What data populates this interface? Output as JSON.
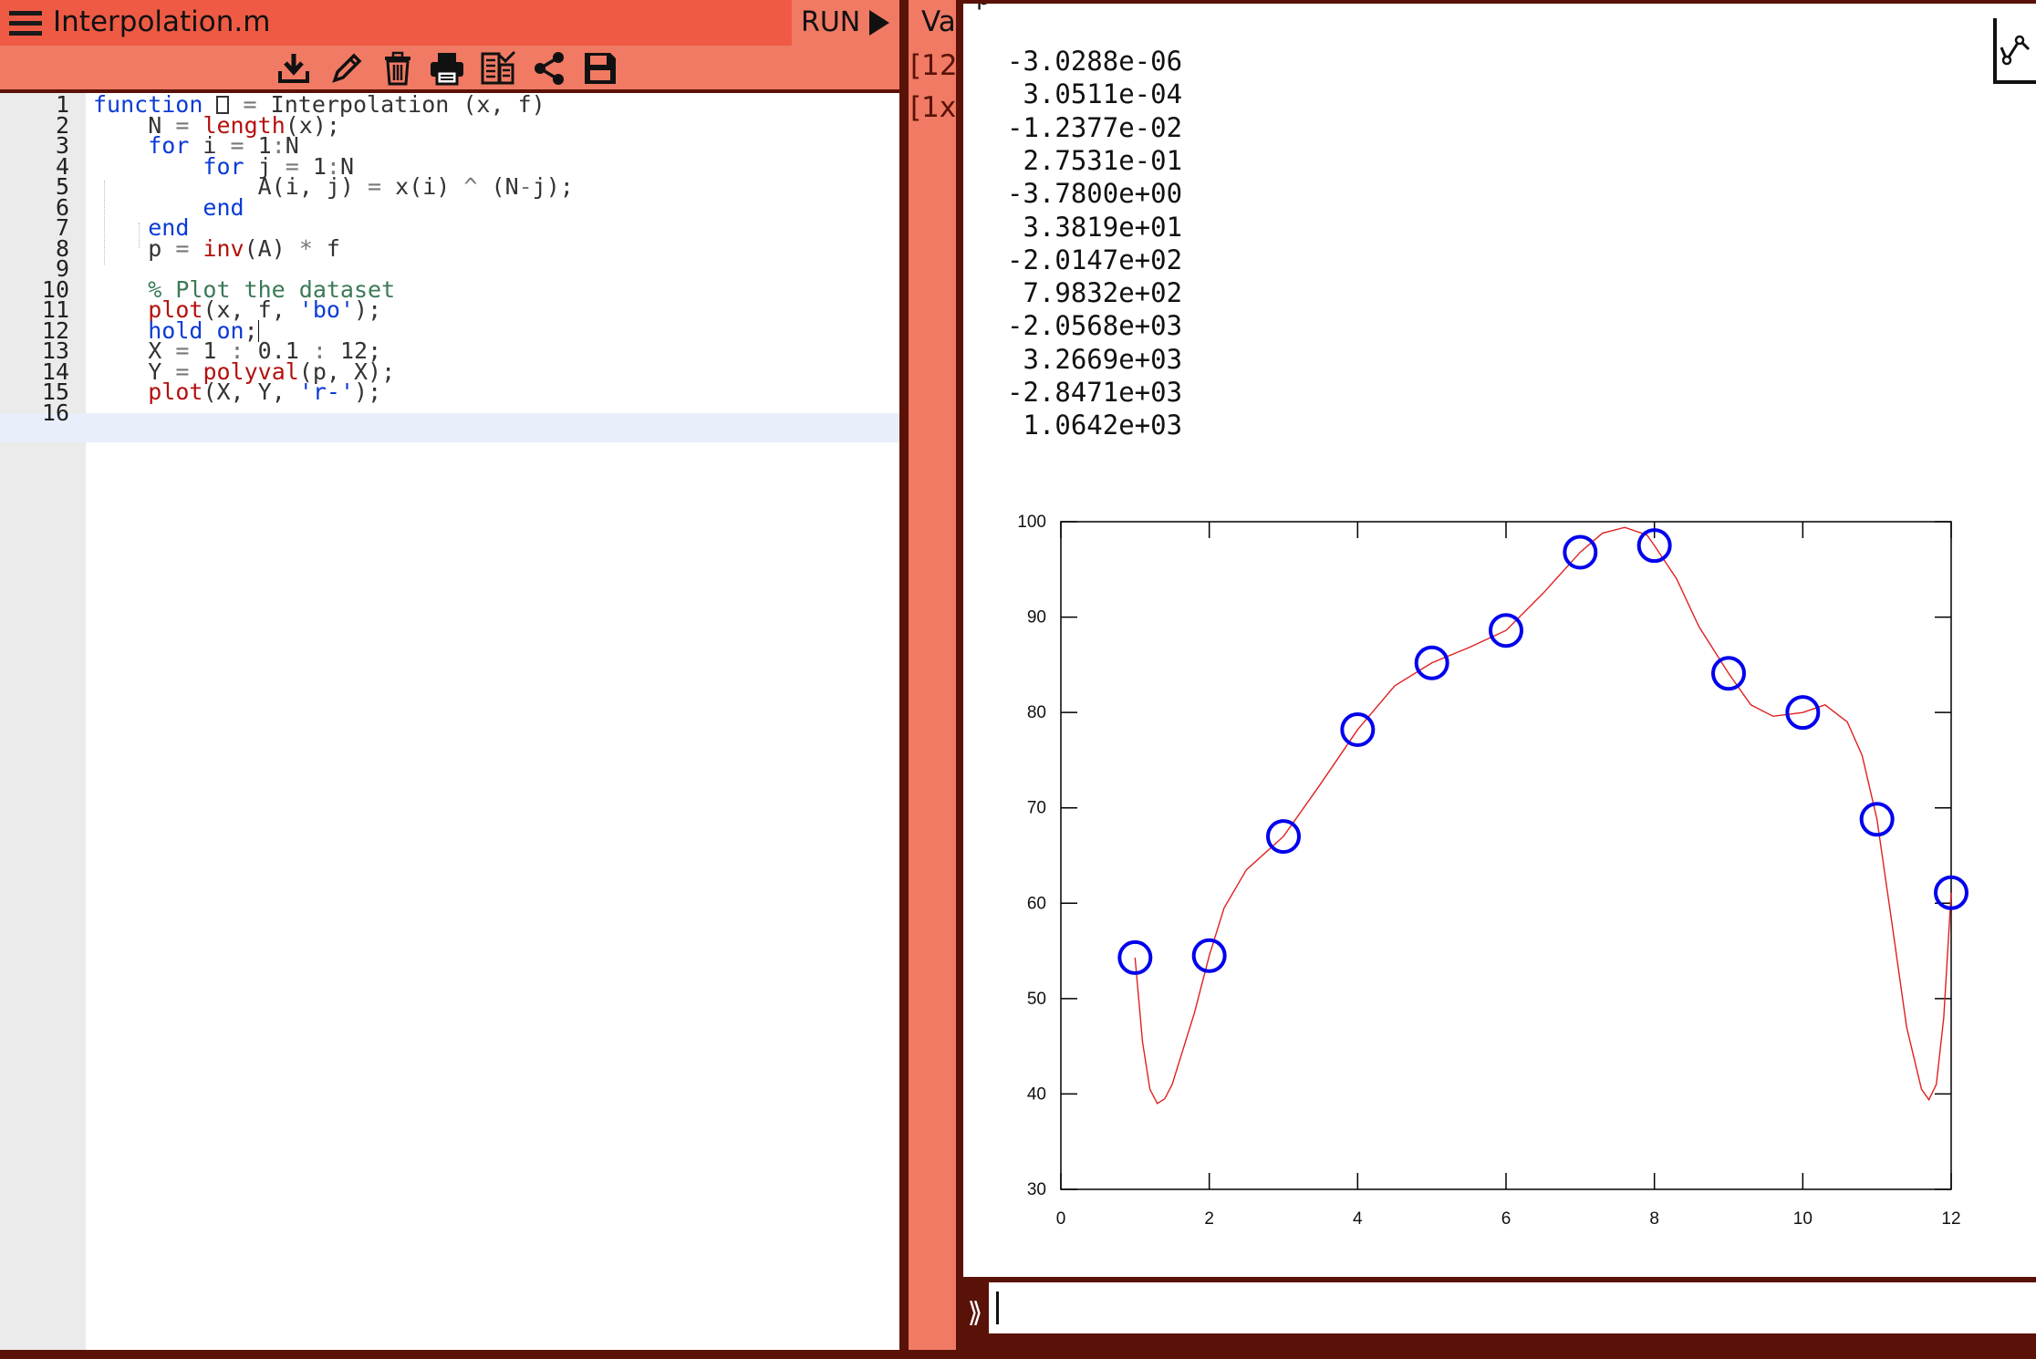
{
  "editor": {
    "file_title": "Interpolation.m",
    "run_label": "RUN",
    "toolbar_icons": [
      "download-icon",
      "pencil-icon",
      "trash-icon",
      "print-icon",
      "checklist-icon",
      "share-icon",
      "save-icon"
    ],
    "line_numbers": [
      "1",
      "2",
      "3",
      "4",
      "5",
      "6",
      "7",
      "8",
      "9",
      "10",
      "11",
      "12",
      "13",
      "14",
      "15",
      "16"
    ],
    "active_line": 12
  },
  "variables": {
    "header": "Va",
    "rows": [
      "[12",
      "[1x"
    ]
  },
  "output": {
    "variable_name": "p",
    "values": [
      "-3.0288e-06",
      " 3.0511e-04",
      "-1.2377e-02",
      " 2.7531e-01",
      "-3.7800e+00",
      " 3.3819e+01",
      "-2.0147e+02",
      " 7.9832e+02",
      "-2.0568e+03",
      " 3.2669e+03",
      "-2.8471e+03",
      " 1.0642e+03"
    ]
  },
  "console": {
    "prompt": "⟫",
    "input_value": ""
  },
  "colors": {
    "title_bar": "#ee5a44",
    "panel_accent": "#f07a64",
    "frame": "#5a1208",
    "data_marker": "#0000ee",
    "fit_line": "#e02020"
  },
  "chart_data": {
    "type": "line",
    "title": "",
    "xlabel": "",
    "ylabel": "",
    "xlim": [
      0,
      12
    ],
    "ylim": [
      30,
      100
    ],
    "x_ticks": [
      "0",
      "2",
      "4",
      "6",
      "8",
      "10",
      "12"
    ],
    "y_ticks": [
      "30",
      "40",
      "50",
      "60",
      "70",
      "80",
      "90",
      "100"
    ],
    "grid": false,
    "series": [
      {
        "style": "blue circles",
        "x": [
          1,
          2,
          3,
          4,
          5,
          6,
          7,
          8,
          9,
          10,
          11,
          12
        ],
        "y": [
          54.3,
          54.5,
          67.0,
          78.2,
          85.2,
          88.6,
          96.8,
          97.5,
          84.1,
          80.0,
          68.8,
          61.1
        ]
      },
      {
        "style": "red line",
        "x": [
          1,
          1.1,
          1.2,
          1.3,
          1.4,
          1.5,
          1.6,
          1.8,
          2,
          2.2,
          2.5,
          3,
          3.5,
          4,
          4.5,
          5,
          5.5,
          6,
          6.5,
          7,
          7.3,
          7.6,
          7.9,
          8,
          8.3,
          8.6,
          9,
          9.3,
          9.6,
          10,
          10.3,
          10.6,
          10.8,
          11,
          11.2,
          11.4,
          11.6,
          11.7,
          11.8,
          11.9,
          12
        ],
        "y": [
          54.3,
          45.5,
          40.5,
          39.0,
          39.5,
          41.0,
          43.5,
          48.5,
          54.5,
          59.5,
          63.5,
          67.0,
          72.5,
          78.2,
          82.8,
          85.2,
          86.8,
          88.6,
          92.5,
          96.8,
          98.8,
          99.4,
          98.6,
          97.5,
          94.0,
          89.0,
          84.1,
          80.8,
          79.6,
          80.0,
          80.8,
          79.0,
          75.5,
          68.8,
          58.0,
          47.0,
          40.5,
          39.4,
          41.0,
          48.0,
          61.1
        ]
      }
    ]
  }
}
